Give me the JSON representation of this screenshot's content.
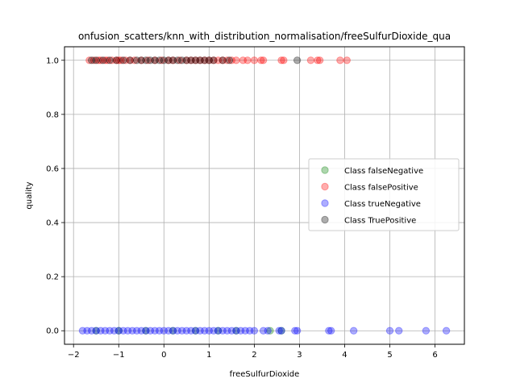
{
  "chart_data": {
    "type": "scatter",
    "title": "onfusion_scatters/knn_with_distribution_normalisation/freeSulfurDioxide_qua",
    "xlabel": "freeSulfurDioxide",
    "ylabel": "quality",
    "xlim": [
      -2.2,
      6.65
    ],
    "ylim": [
      -0.05,
      1.05
    ],
    "xticks": [
      -2,
      -1,
      0,
      1,
      2,
      3,
      4,
      5,
      6
    ],
    "yticks": [
      0.0,
      0.2,
      0.4,
      0.6,
      0.8,
      1.0
    ],
    "grid": true,
    "legend_position": "center-right",
    "series": [
      {
        "name": "Class falseNegative",
        "color": "#008000",
        "y": 0,
        "x": [
          -1.5,
          -1.0,
          -0.4,
          0.2,
          0.7,
          1.2,
          1.6,
          2.35,
          2.6
        ]
      },
      {
        "name": "Class falsePositive",
        "color": "#ff0000",
        "y": 1,
        "x": [
          -1.65,
          -1.55,
          -1.45,
          -1.4,
          -1.3,
          -1.25,
          -1.15,
          -1.05,
          -1.0,
          -0.95,
          -0.85,
          -0.75,
          -0.65,
          -0.5,
          -0.35,
          -0.2,
          -0.05,
          0.1,
          0.2,
          0.35,
          0.5,
          0.6,
          0.7,
          0.8,
          0.9,
          1.0,
          1.1,
          1.2,
          1.3,
          1.4,
          1.5,
          1.6,
          1.75,
          1.85,
          2.0,
          2.15,
          2.2,
          2.6,
          2.65,
          3.25,
          3.4,
          3.45,
          3.9,
          4.05
        ]
      },
      {
        "name": "Class trueNegative",
        "color": "#0000ff",
        "y": 0,
        "x": [
          -1.8,
          -1.7,
          -1.6,
          -1.5,
          -1.4,
          -1.3,
          -1.2,
          -1.1,
          -1.0,
          -0.9,
          -0.8,
          -0.7,
          -0.6,
          -0.5,
          -0.4,
          -0.3,
          -0.2,
          -0.1,
          0.0,
          0.1,
          0.2,
          0.3,
          0.4,
          0.5,
          0.6,
          0.7,
          0.8,
          0.9,
          1.0,
          1.1,
          1.2,
          1.3,
          1.4,
          1.5,
          1.6,
          1.7,
          1.8,
          1.9,
          2.0,
          2.2,
          2.3,
          2.55,
          2.6,
          2.9,
          2.95,
          3.65,
          3.7,
          4.2,
          5.0,
          5.2,
          5.8,
          6.25
        ]
      },
      {
        "name": "Class TruePositive",
        "color": "#000000",
        "y": 1,
        "x": [
          -1.6,
          -1.5,
          -1.35,
          -1.2,
          -1.05,
          -0.9,
          -0.75,
          -0.6,
          -0.5,
          -0.4,
          -0.3,
          -0.2,
          -0.1,
          0.0,
          0.1,
          0.2,
          0.3,
          0.4,
          0.5,
          0.6,
          0.7,
          0.8,
          0.9,
          1.0,
          1.1,
          1.3,
          1.45,
          2.95
        ]
      }
    ]
  }
}
